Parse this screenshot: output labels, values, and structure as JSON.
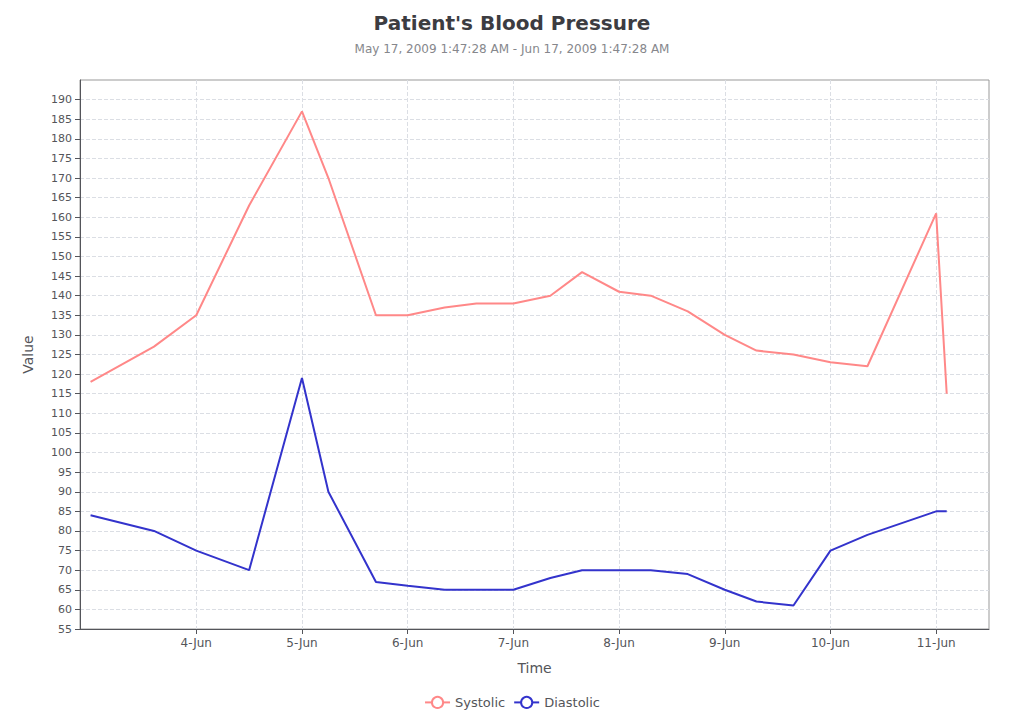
{
  "chart_data": {
    "type": "line",
    "title": "Patient's Blood Pressure",
    "subtitle": "May 17, 2009 1:47:28 AM - Jun 17, 2009 1:47:28 AM",
    "xlabel": "Time",
    "ylabel": "Value",
    "x": [
      0.0,
      0.6,
      1.0,
      1.5,
      2.0,
      2.25,
      2.7,
      3.0,
      3.35,
      3.65,
      4.0,
      4.35,
      4.65,
      5.0,
      5.3,
      5.65,
      6.0,
      6.3,
      6.65,
      7.0,
      7.35,
      8.0,
      8.1
    ],
    "series": [
      {
        "name": "Systolic",
        "color": "#FF8888",
        "values": [
          118,
          127,
          135,
          163,
          187,
          170,
          135,
          135,
          137,
          138,
          138,
          140,
          146,
          141,
          140,
          136,
          130,
          126,
          125,
          123,
          122,
          161,
          115
        ]
      },
      {
        "name": "Diastolic",
        "color": "#3333CC",
        "values": [
          84,
          80,
          75,
          70,
          119,
          90,
          67,
          66,
          65,
          65,
          65,
          68,
          70,
          70,
          70,
          69,
          65,
          62,
          61,
          75,
          79,
          85,
          85
        ]
      }
    ],
    "xlim": [
      -0.1,
      8.5
    ],
    "xticks": [
      {
        "value": 1.0,
        "label": "4-Jun"
      },
      {
        "value": 2.0,
        "label": "5-Jun"
      },
      {
        "value": 3.0,
        "label": "6-Jun"
      },
      {
        "value": 4.0,
        "label": "7-Jun"
      },
      {
        "value": 5.0,
        "label": "8-Jun"
      },
      {
        "value": 6.0,
        "label": "9-Jun"
      },
      {
        "value": 7.0,
        "label": "10-Jun"
      },
      {
        "value": 8.0,
        "label": "11-Jun"
      }
    ],
    "ylim": [
      55,
      195
    ],
    "yticks": [
      55,
      60,
      65,
      70,
      75,
      80,
      85,
      90,
      95,
      100,
      105,
      110,
      115,
      120,
      125,
      130,
      135,
      140,
      145,
      150,
      155,
      160,
      165,
      170,
      175,
      180,
      185,
      190
    ],
    "grid": true,
    "legend": "bottom"
  }
}
